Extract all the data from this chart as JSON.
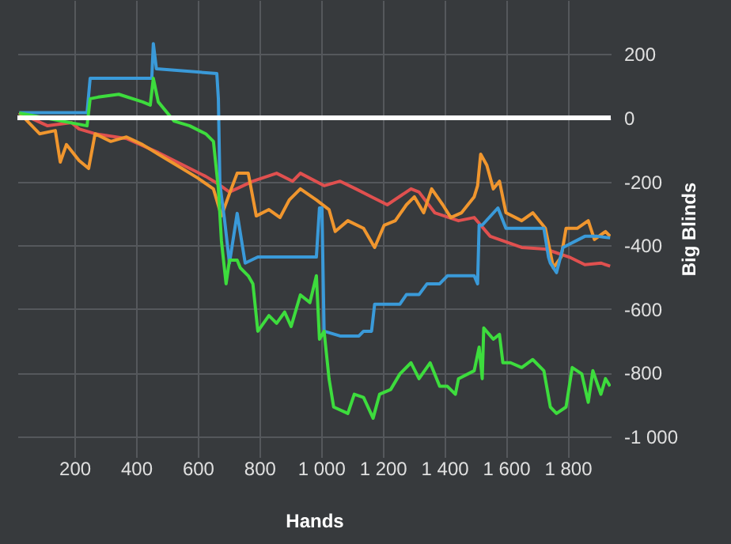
{
  "chart_data": {
    "type": "line",
    "xlabel": "Hands",
    "ylabel": "Big Blinds",
    "xlim": [
      15,
      1940
    ],
    "ylim": [
      -1065,
      370
    ],
    "xticks": [
      200,
      400,
      600,
      800,
      {
        "value": 1000,
        "label": "1 000"
      },
      {
        "value": 1200,
        "label": "1 200"
      },
      {
        "value": 1400,
        "label": "1 400"
      },
      {
        "value": 1600,
        "label": "1 600"
      },
      {
        "value": 1800,
        "label": "1 800"
      }
    ],
    "yticks": [
      200,
      0,
      -200,
      -400,
      -600,
      -800,
      {
        "value": -1000,
        "label": "-1 000"
      }
    ],
    "grid": true,
    "line_style": "solid",
    "ref_lines": [
      {
        "axis": "y",
        "value": 0,
        "color": "#ffffff"
      }
    ],
    "series": [
      {
        "color": "#e0504f",
        "x": [
          21,
          113,
          190,
          215,
          267,
          369,
          472,
          574,
          626,
          667,
          703,
          779,
          856,
          908,
          933,
          1010,
          1062,
          1113,
          1164,
          1215,
          1292,
          1318,
          1369,
          1446,
          1497,
          1549,
          1651,
          1728,
          1805,
          1856,
          1908,
          1938
        ],
        "values": [
          16,
          -25,
          -15,
          -35,
          -50,
          -65,
          -109,
          -159,
          -184,
          -208,
          -233,
          -199,
          -174,
          -199,
          -174,
          -213,
          -199,
          -223,
          -248,
          -273,
          -223,
          -233,
          -298,
          -323,
          -313,
          -372,
          -407,
          -412,
          -437,
          -461,
          -456,
          -466
        ]
      },
      {
        "color": "#f0962e",
        "x": [
          21,
          87,
          138,
          154,
          174,
          215,
          246,
          267,
          318,
          369,
          421,
          472,
          549,
          600,
          651,
          677,
          703,
          728,
          764,
          790,
          831,
          867,
          897,
          933,
          985,
          1026,
          1046,
          1087,
          1138,
          1174,
          1205,
          1241,
          1277,
          1303,
          1333,
          1359,
          1395,
          1421,
          1456,
          1497,
          1508,
          1518,
          1538,
          1559,
          1579,
          1600,
          1651,
          1687,
          1728,
          1754,
          1779,
          1795,
          1831,
          1867,
          1887,
          1923,
          1938
        ],
        "values": [
          16,
          -50,
          -40,
          -139,
          -84,
          -134,
          -159,
          -50,
          -74,
          -60,
          -84,
          -114,
          -159,
          -189,
          -223,
          -308,
          -238,
          -174,
          -174,
          -308,
          -288,
          -313,
          -258,
          -223,
          -258,
          -288,
          -357,
          -323,
          -347,
          -407,
          -337,
          -323,
          -273,
          -248,
          -298,
          -223,
          -273,
          -313,
          -298,
          -248,
          -213,
          -114,
          -149,
          -223,
          -199,
          -298,
          -323,
          -298,
          -347,
          -471,
          -437,
          -347,
          -347,
          -323,
          -382,
          -357,
          -372
        ]
      },
      {
        "color": "#3a9ad9",
        "x": [
          21,
          241,
          251,
          451,
          456,
          466,
          662,
          667,
          672,
          687,
          703,
          728,
          754,
          795,
          985,
          995,
          1003,
          1010,
          1062,
          1123,
          1138,
          1164,
          1174,
          1256,
          1277,
          1318,
          1344,
          1385,
          1410,
          1497,
          1508,
          1513,
          1523,
          1574,
          1600,
          1723,
          1738,
          1744,
          1764,
          1785,
          1856,
          1897,
          1938
        ],
        "values": [
          16,
          16,
          124,
          124,
          233,
          154,
          139,
          60,
          -208,
          -320,
          -456,
          -300,
          -456,
          -437,
          -437,
          -283,
          -283,
          -670,
          -685,
          -685,
          -670,
          -670,
          -585,
          -585,
          -555,
          -555,
          -521,
          -521,
          -496,
          -496,
          -521,
          -337,
          -337,
          -283,
          -347,
          -347,
          -437,
          -456,
          -486,
          -407,
          -372,
          -372,
          -377
        ]
      },
      {
        "color": "#3ddc3d",
        "x": [
          21,
          241,
          251,
          277,
          344,
          421,
          446,
          456,
          472,
          523,
          574,
          626,
          651,
          667,
          677,
          692,
          703,
          728,
          738,
          764,
          779,
          795,
          831,
          856,
          882,
          903,
          933,
          964,
          985,
          995,
          1010,
          1026,
          1041,
          1087,
          1108,
          1138,
          1169,
          1190,
          1226,
          1256,
          1292,
          1318,
          1354,
          1385,
          1410,
          1436,
          1446,
          1497,
          1513,
          1523,
          1528,
          1559,
          1579,
          1590,
          1615,
          1651,
          1687,
          1723,
          1744,
          1764,
          1795,
          1815,
          1846,
          1867,
          1882,
          1908,
          1923,
          1938
        ],
        "values": [
          15,
          -25,
          60,
          65,
          74,
          50,
          40,
          124,
          50,
          -10,
          -25,
          -50,
          -74,
          -223,
          -387,
          -521,
          -447,
          -447,
          -471,
          -496,
          -521,
          -670,
          -621,
          -645,
          -610,
          -655,
          -556,
          -580,
          -496,
          -695,
          -670,
          -819,
          -908,
          -928,
          -868,
          -878,
          -943,
          -868,
          -853,
          -804,
          -769,
          -819,
          -769,
          -843,
          -843,
          -868,
          -819,
          -794,
          -720,
          -819,
          -660,
          -695,
          -680,
          -769,
          -769,
          -784,
          -759,
          -794,
          -908,
          -928,
          -908,
          -784,
          -804,
          -893,
          -794,
          -868,
          -819,
          -843
        ]
      }
    ]
  }
}
